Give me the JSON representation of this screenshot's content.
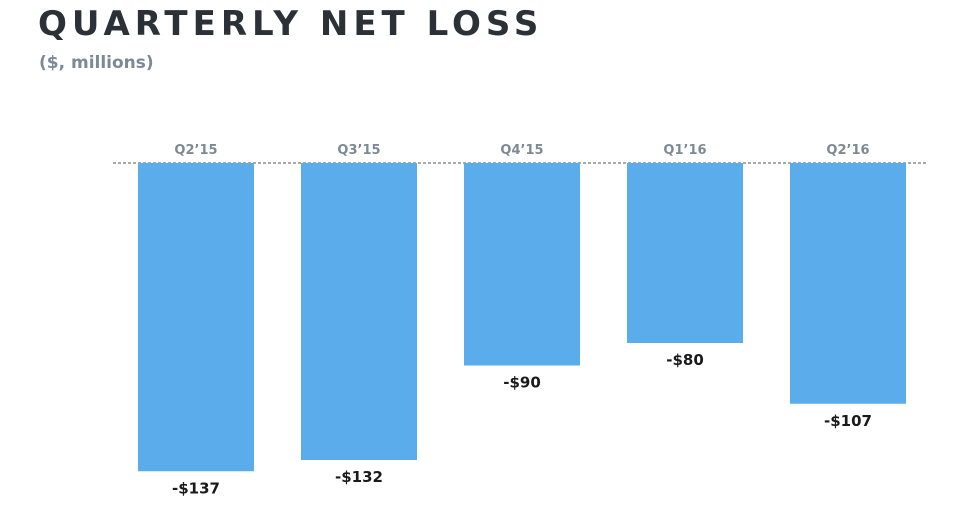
{
  "header": {
    "title": "QUARTERLY NET LOSS",
    "subtitle": "($, millions)"
  },
  "colors": {
    "bar": "#5aaceb",
    "title": "#2b3136",
    "subtitle": "#7d8a95",
    "category_label": "#7d8a95",
    "value_label": "#1a1a1a",
    "baseline": "#555555"
  },
  "chart_data": {
    "type": "bar",
    "title": "QUARTERLY NET LOSS",
    "subtitle": "($, millions)",
    "categories": [
      "Q2’15",
      "Q3’15",
      "Q4’15",
      "Q1’16",
      "Q2’16"
    ],
    "values": [
      -137,
      -132,
      -90,
      -80,
      -107
    ],
    "value_labels": [
      "-$137",
      "-$132",
      "-$90",
      "-$80",
      "-$107"
    ],
    "ylim": [
      -140,
      0
    ],
    "baseline": "dashed",
    "grid": false,
    "legend": "none",
    "category_labels_position": "above baseline"
  }
}
